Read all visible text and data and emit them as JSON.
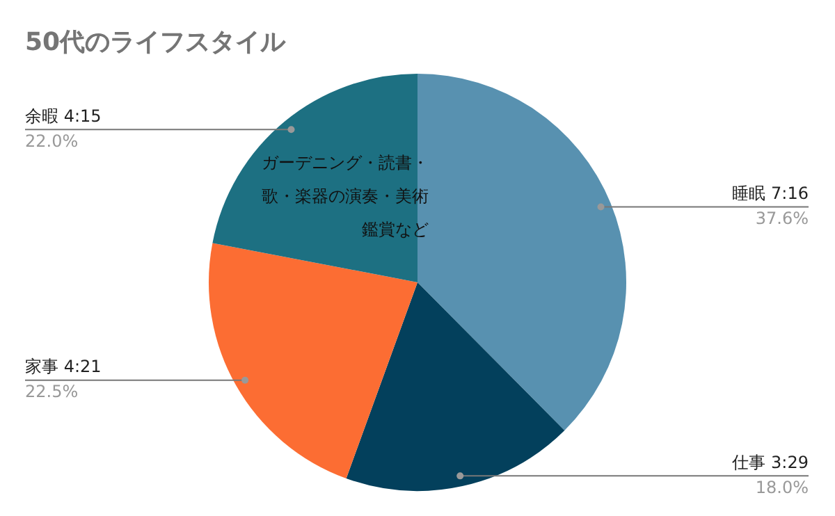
{
  "chart_data": {
    "type": "pie",
    "title": "50代のライフスタイル",
    "categories": [
      "睡眠 7:16",
      "仕事 3:29",
      "家事 4:21",
      "余暇 4:15"
    ],
    "values": [
      37.6,
      18.0,
      22.5,
      22.0
    ],
    "value_labels": [
      "37.6%",
      "18.0%",
      "22.5%",
      "22.0%"
    ],
    "colors": [
      "#5891b0",
      "#03405c",
      "#fc6d33",
      "#1d7082"
    ],
    "annotations": [
      {
        "text": "ガーデニング・読書・歌・楽器の演奏・美術鑑賞など",
        "x": "余暇 4:15"
      }
    ],
    "legend": false
  }
}
